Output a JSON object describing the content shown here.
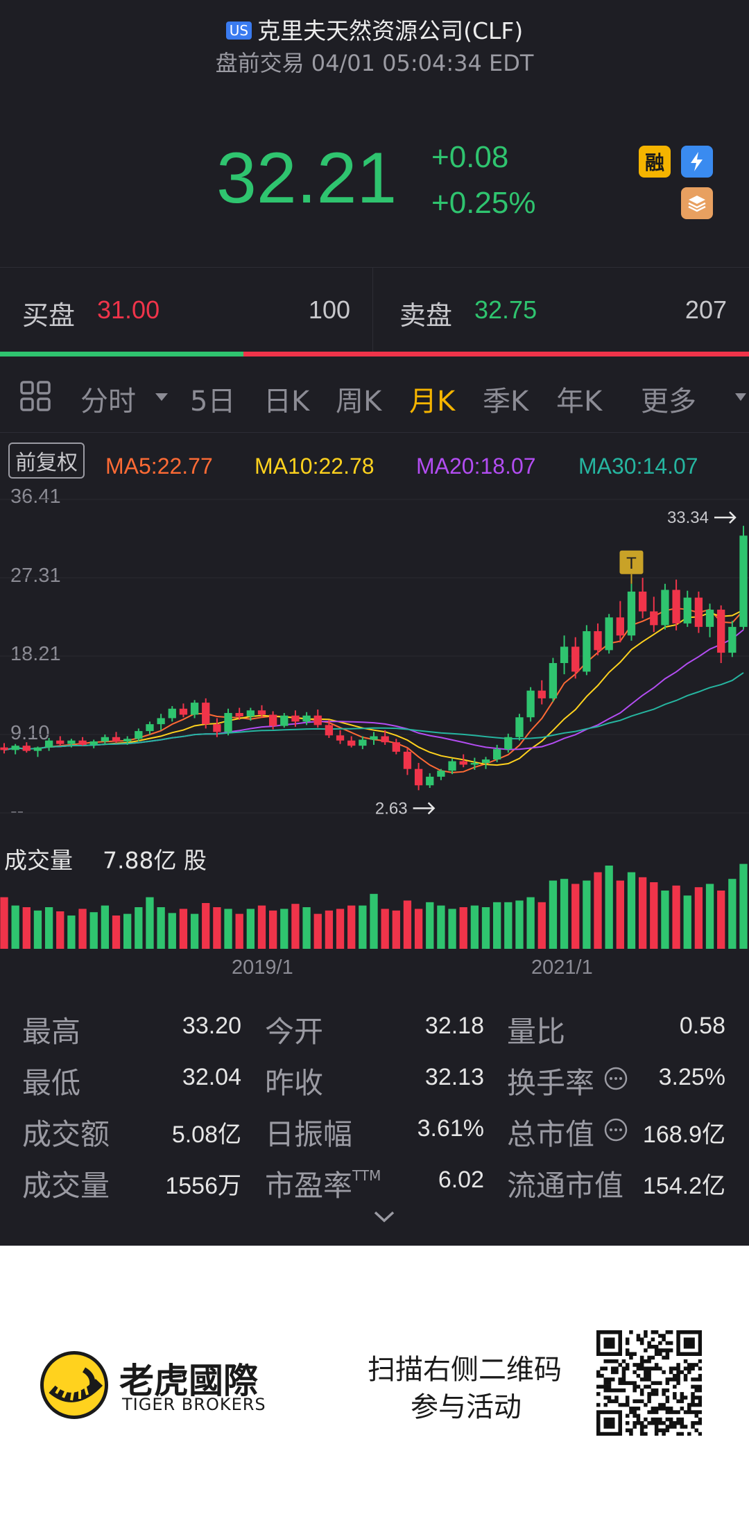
{
  "header": {
    "market_badge": "US",
    "title": "克里夫天然资源公司(CLF)",
    "subtitle": "盘前交易 04/01 05:04:34 EDT",
    "price": "32.21",
    "change": "+0.08",
    "change_pct": "+0.25%",
    "badge_margin": "融",
    "colors": {
      "up_green": "#2fc46f",
      "down_red": "#f0344a",
      "accent": "#f5b400"
    }
  },
  "orderbook": {
    "bid_label": "买盘",
    "bid_price": "31.00",
    "bid_qty": "100",
    "ask_label": "卖盘",
    "ask_price": "32.75",
    "ask_qty": "207",
    "bid_share": 0.325
  },
  "tabs": {
    "items": [
      "分时",
      "5日",
      "日K",
      "周K",
      "月K",
      "季K",
      "年K",
      "更多"
    ],
    "active": "月K"
  },
  "chart_data": {
    "type": "candlestick",
    "period": "monthly",
    "adjust_label": "前复权",
    "ma": [
      {
        "name": "MA5",
        "value": "22.77",
        "color": "#ff6b35"
      },
      {
        "name": "MA10",
        "value": "22.78",
        "color": "#ffd21e"
      },
      {
        "name": "MA20",
        "value": "18.07",
        "color": "#b34df2"
      },
      {
        "name": "MA30",
        "value": "14.07",
        "color": "#26b5a0"
      }
    ],
    "ma_labels": [
      "MA5:22.77",
      "MA10:22.78",
      "MA20:18.07",
      "MA30:14.07"
    ],
    "y_ticks": [
      "36.41",
      "27.31",
      "18.21",
      "9.10",
      "--"
    ],
    "ylim": [
      0,
      36.41
    ],
    "max_label": "33.34",
    "min_label": "2.63",
    "marker_label": "T",
    "x_labels": [
      "2019/1",
      "2021/1"
    ],
    "volume_label": "成交量",
    "volume_value": "7.88亿 股",
    "candles": [
      [
        7.6,
        8.1,
        6.9,
        7.3
      ],
      [
        7.3,
        8.0,
        6.8,
        7.8
      ],
      [
        7.8,
        8.2,
        7.0,
        7.2
      ],
      [
        7.2,
        7.7,
        6.5,
        7.6
      ],
      [
        7.6,
        8.7,
        7.2,
        8.4
      ],
      [
        8.4,
        8.9,
        7.8,
        8.0
      ],
      [
        8.0,
        8.6,
        7.6,
        8.4
      ],
      [
        8.4,
        8.8,
        7.8,
        7.9
      ],
      [
        7.9,
        8.5,
        7.5,
        8.3
      ],
      [
        8.3,
        9.1,
        7.9,
        8.8
      ],
      [
        8.8,
        9.4,
        8.1,
        8.3
      ],
      [
        8.3,
        8.9,
        7.9,
        8.6
      ],
      [
        8.6,
        9.8,
        8.3,
        9.5
      ],
      [
        9.5,
        10.6,
        9.1,
        10.3
      ],
      [
        10.3,
        11.5,
        9.6,
        11.0
      ],
      [
        11.0,
        12.4,
        10.6,
        12.1
      ],
      [
        12.1,
        12.7,
        11.1,
        11.4
      ],
      [
        11.4,
        13.1,
        11.0,
        12.8
      ],
      [
        12.8,
        13.3,
        9.8,
        10.3
      ],
      [
        10.3,
        11.0,
        8.8,
        9.4
      ],
      [
        9.4,
        12.1,
        9.0,
        11.6
      ],
      [
        11.6,
        12.2,
        10.8,
        11.2
      ],
      [
        11.2,
        12.2,
        10.7,
        11.9
      ],
      [
        11.9,
        12.5,
        11.1,
        11.4
      ],
      [
        11.4,
        11.8,
        9.7,
        10.1
      ],
      [
        10.1,
        11.6,
        9.9,
        11.3
      ],
      [
        11.3,
        11.9,
        10.0,
        10.6
      ],
      [
        10.6,
        11.7,
        10.2,
        11.3
      ],
      [
        11.3,
        12.0,
        9.9,
        10.2
      ],
      [
        10.2,
        10.8,
        8.7,
        9.0
      ],
      [
        9.0,
        9.6,
        8.0,
        8.4
      ],
      [
        8.4,
        8.9,
        7.6,
        7.8
      ],
      [
        7.8,
        8.9,
        7.4,
        8.5
      ],
      [
        8.5,
        9.4,
        7.9,
        8.9
      ],
      [
        8.9,
        9.6,
        7.9,
        8.2
      ],
      [
        8.2,
        8.6,
        6.8,
        7.1
      ],
      [
        7.1,
        7.5,
        4.4,
        5.1
      ],
      [
        5.1,
        5.8,
        2.63,
        3.2
      ],
      [
        3.2,
        4.6,
        2.9,
        4.2
      ],
      [
        4.2,
        5.1,
        3.8,
        4.9
      ],
      [
        4.9,
        6.3,
        4.5,
        6.0
      ],
      [
        6.0,
        6.8,
        5.3,
        5.6
      ],
      [
        5.6,
        6.4,
        5.0,
        5.8
      ],
      [
        5.8,
        6.5,
        5.1,
        6.2
      ],
      [
        6.2,
        7.9,
        5.9,
        7.4
      ],
      [
        7.4,
        9.2,
        7.0,
        8.8
      ],
      [
        8.8,
        11.5,
        8.4,
        11.1
      ],
      [
        11.1,
        14.6,
        10.6,
        14.2
      ],
      [
        14.2,
        15.4,
        12.6,
        13.3
      ],
      [
        13.3,
        18.0,
        12.9,
        17.4
      ],
      [
        17.4,
        20.6,
        16.1,
        19.3
      ],
      [
        19.3,
        20.4,
        15.6,
        16.4
      ],
      [
        16.4,
        21.8,
        16.0,
        21.1
      ],
      [
        21.1,
        22.0,
        18.3,
        18.9
      ],
      [
        18.9,
        23.1,
        18.5,
        22.7
      ],
      [
        22.7,
        24.6,
        19.8,
        20.6
      ],
      [
        20.6,
        26.6,
        20.0,
        25.7
      ],
      [
        25.7,
        27.3,
        22.6,
        23.4
      ],
      [
        23.4,
        25.1,
        21.0,
        21.8
      ],
      [
        21.8,
        26.6,
        21.3,
        25.9
      ],
      [
        25.9,
        27.1,
        21.2,
        22.0
      ],
      [
        22.0,
        25.8,
        21.6,
        25.0
      ],
      [
        25.0,
        25.7,
        20.9,
        21.6
      ],
      [
        21.6,
        24.3,
        20.4,
        23.6
      ],
      [
        23.6,
        24.1,
        17.4,
        18.6
      ],
      [
        18.6,
        22.3,
        18.1,
        21.6
      ],
      [
        21.6,
        33.34,
        21.3,
        32.2
      ]
    ],
    "volumes": [
      0.62,
      0.52,
      0.5,
      0.46,
      0.5,
      0.45,
      0.4,
      0.48,
      0.44,
      0.52,
      0.4,
      0.42,
      0.5,
      0.62,
      0.5,
      0.43,
      0.48,
      0.42,
      0.55,
      0.5,
      0.48,
      0.42,
      0.48,
      0.52,
      0.46,
      0.48,
      0.54,
      0.5,
      0.42,
      0.46,
      0.48,
      0.52,
      0.52,
      0.66,
      0.48,
      0.46,
      0.58,
      0.48,
      0.56,
      0.52,
      0.48,
      0.5,
      0.52,
      0.5,
      0.56,
      0.56,
      0.58,
      0.62,
      0.56,
      0.82,
      0.84,
      0.78,
      0.82,
      0.92,
      1.0,
      0.82,
      0.92,
      0.86,
      0.8,
      0.7,
      0.76,
      0.64,
      0.74,
      0.78,
      0.7,
      0.84,
      1.02
    ]
  },
  "stats": [
    {
      "label": "最高",
      "value": "33.20"
    },
    {
      "label": "今开",
      "value": "32.18"
    },
    {
      "label": "量比",
      "value": "0.58"
    },
    {
      "label": "最低",
      "value": "32.04"
    },
    {
      "label": "昨收",
      "value": "32.13"
    },
    {
      "label": "换手率",
      "value": "3.25%"
    },
    {
      "label": "成交额",
      "value": "5.08亿"
    },
    {
      "label": "日振幅",
      "value": "3.61%"
    },
    {
      "label": "总市值",
      "value": "168.9亿"
    },
    {
      "label": "成交量",
      "value": "1556万"
    },
    {
      "label": "市盈率",
      "value": "6.02"
    },
    {
      "label": "流通市值",
      "value": "154.2亿"
    }
  ],
  "ttm_sup": "TTM",
  "footer": {
    "brand_cn": "老虎國際",
    "brand_en": "TIGER BROKERS",
    "promo_line1": "扫描右侧二维码",
    "promo_line2": "参与活动"
  }
}
